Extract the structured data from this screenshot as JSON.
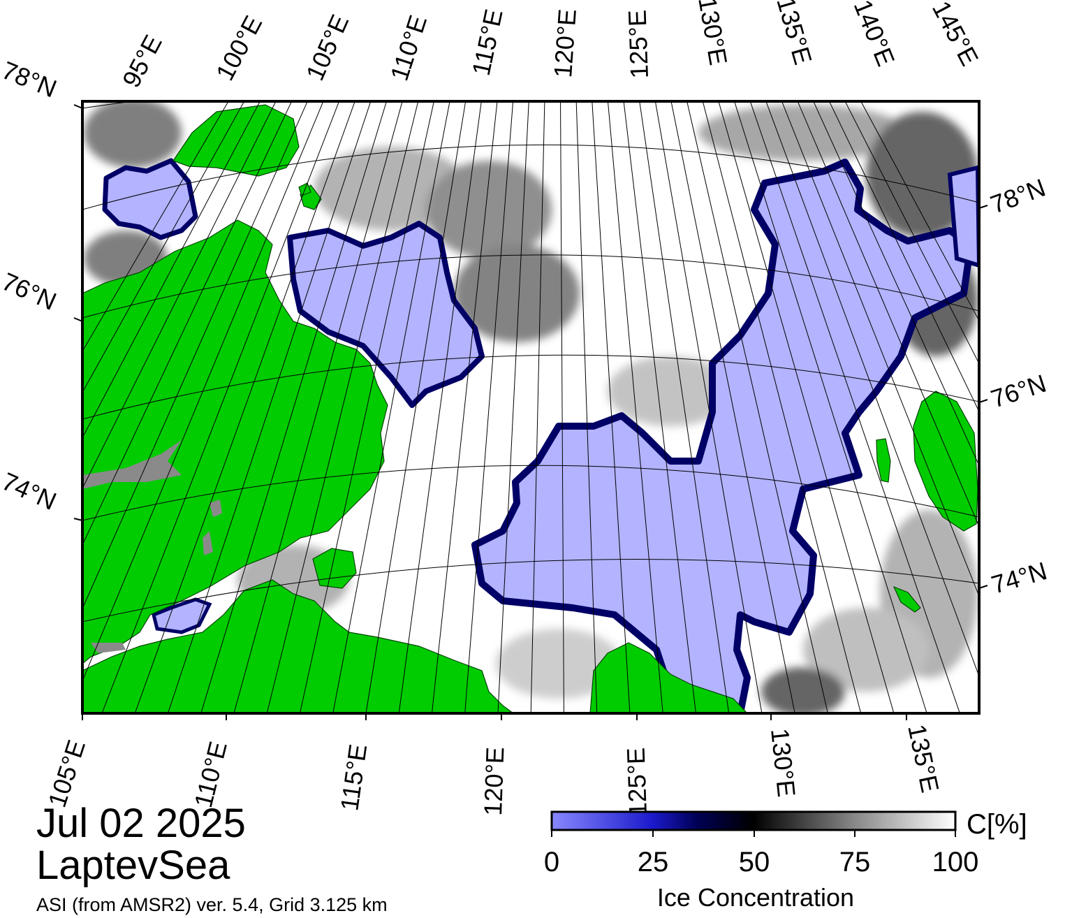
{
  "map": {
    "date": "Jul 02 2025",
    "region": "LaptevSea",
    "source": "ASI (from AMSR2) ver. 5.4,  Grid 3.125 km",
    "top_lon_labels": [
      "95°E",
      "100°E",
      "105°E",
      "110°E",
      "115°E",
      "120°E",
      "125°E",
      "130°E",
      "135°E",
      "140°E",
      "145°E"
    ],
    "bottom_lon_labels": [
      "105°E",
      "110°E",
      "115°E",
      "120°E",
      "125°E",
      "130°E",
      "135°E"
    ],
    "left_lat_labels": [
      "78°N",
      "76°N",
      "74°N"
    ],
    "right_lat_labels": [
      "78°N",
      "76°N",
      "74°N"
    ],
    "colors": {
      "land": "#00cc00",
      "open_water": "#b3b3ff",
      "coast_band": "#000066",
      "lake_gray": "#8a8a8a"
    },
    "icons": [
      "colorbar-gradient"
    ]
  },
  "colorbar": {
    "ticks": [
      "0",
      "25",
      "50",
      "75",
      "100"
    ],
    "unit": "C[%]",
    "title": "Ice Concentration"
  }
}
